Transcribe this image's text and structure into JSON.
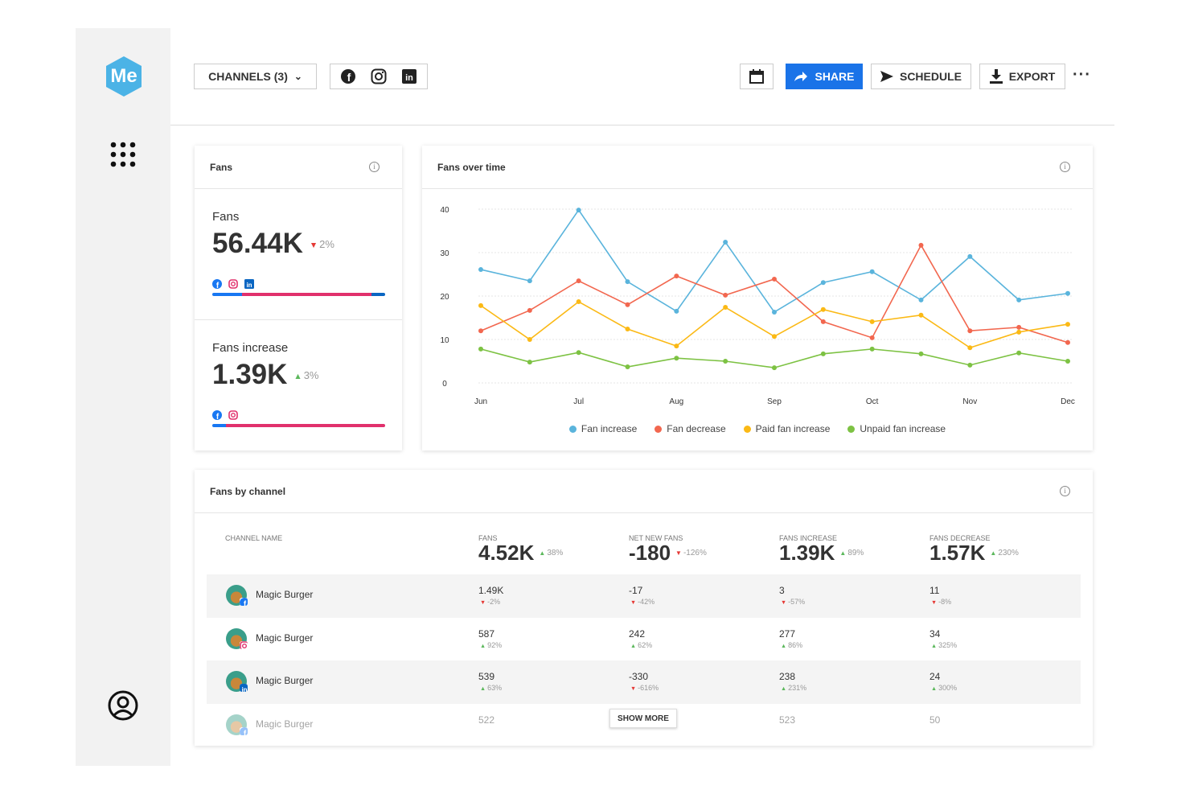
{
  "toolbar": {
    "logo": "Me",
    "channels": "CHANNELS (3)",
    "share": "SHARE",
    "schedule": "SCHEDULE",
    "export": "EXPORT"
  },
  "fans_card": {
    "title": "Fans",
    "metrics": [
      {
        "label": "Fans",
        "value": "56.44K",
        "change": "2%",
        "trend": "down",
        "segments": [
          {
            "channel": "facebook",
            "color": "#1877f2",
            "share": 17
          },
          {
            "channel": "instagram",
            "color": "#e1306c",
            "share": 75
          },
          {
            "channel": "linkedin",
            "color": "#0a66c2",
            "share": 8
          }
        ]
      },
      {
        "label": "Fans increase",
        "value": "1.39K",
        "change": "3%",
        "trend": "up",
        "segments": [
          {
            "channel": "facebook",
            "color": "#1877f2",
            "share": 8
          },
          {
            "channel": "instagram",
            "color": "#e1306c",
            "share": 92
          }
        ]
      }
    ]
  },
  "chart_data": {
    "type": "line",
    "title": "Fans over time",
    "categories": [
      "Jun",
      null,
      "Jul",
      null,
      "Aug",
      null,
      "Sep",
      null,
      "Oct",
      null,
      "Nov",
      null,
      "Dec"
    ],
    "series": [
      {
        "name": "Fan increase",
        "color": "#5ab4dc",
        "values": [
          26.1,
          23.5,
          39.8,
          23.3,
          16.5,
          32.4,
          16.3,
          23.1,
          25.6,
          19.1,
          29.1,
          19.1,
          20.6
        ]
      },
      {
        "name": "Fan decrease",
        "color": "#f2674f",
        "values": [
          12.0,
          16.7,
          23.5,
          18.0,
          24.6,
          20.2,
          23.9,
          14.1,
          10.4,
          31.7,
          12.0,
          12.8,
          9.3
        ]
      },
      {
        "name": "Paid fan increase",
        "color": "#fbb915",
        "values": [
          17.8,
          10.0,
          18.7,
          12.4,
          8.5,
          17.4,
          10.7,
          16.9,
          14.1,
          15.6,
          8.1,
          11.7,
          13.5
        ]
      },
      {
        "name": "Unpaid fan increase",
        "color": "#7dc243",
        "values": [
          7.8,
          4.8,
          7.0,
          3.7,
          5.7,
          5.0,
          3.5,
          6.7,
          7.8,
          6.7,
          4.1,
          6.9,
          5.0
        ]
      }
    ],
    "ylim": [
      0,
      40
    ],
    "yticks": [
      0,
      10,
      20,
      30,
      40
    ],
    "grid": true
  },
  "table": {
    "title": "Fans by channel",
    "name_header": "CHANNEL NAME",
    "columns": [
      {
        "header": "FANS",
        "total": "4.52K",
        "change": "38%",
        "trend": "up"
      },
      {
        "header": "NET NEW FANS",
        "total": "-180",
        "change": "-126%",
        "trend": "down"
      },
      {
        "header": "FANS INCREASE",
        "total": "1.39K",
        "change": "89%",
        "trend": "up"
      },
      {
        "header": "FANS DECREASE",
        "total": "1.57K",
        "change": "230%",
        "trend": "up"
      }
    ],
    "rows": [
      {
        "name": "Magic Burger",
        "channel": "facebook",
        "cells": [
          {
            "value": "1.49K",
            "change": "-2%",
            "trend": "down"
          },
          {
            "value": "-17",
            "change": "-42%",
            "trend": "down"
          },
          {
            "value": "3",
            "change": "-57%",
            "trend": "down"
          },
          {
            "value": "11",
            "change": "-8%",
            "trend": "down"
          }
        ]
      },
      {
        "name": "Magic Burger",
        "channel": "instagram",
        "cells": [
          {
            "value": "587",
            "change": "92%",
            "trend": "up"
          },
          {
            "value": "242",
            "change": "62%",
            "trend": "up"
          },
          {
            "value": "277",
            "change": "86%",
            "trend": "up"
          },
          {
            "value": "34",
            "change": "325%",
            "trend": "up"
          }
        ]
      },
      {
        "name": "Magic Burger",
        "channel": "linkedin",
        "cells": [
          {
            "value": "539",
            "change": "63%",
            "trend": "up"
          },
          {
            "value": "-330",
            "change": "-616%",
            "trend": "down"
          },
          {
            "value": "238",
            "change": "231%",
            "trend": "up"
          },
          {
            "value": "24",
            "change": "300%",
            "trend": "up"
          }
        ]
      },
      {
        "name": "Magic Burger",
        "channel": "facebook",
        "cells": [
          {
            "value": "522"
          },
          {
            "value": ""
          },
          {
            "value": "523"
          },
          {
            "value": "50"
          }
        ]
      }
    ],
    "show_more": "SHOW MORE"
  }
}
